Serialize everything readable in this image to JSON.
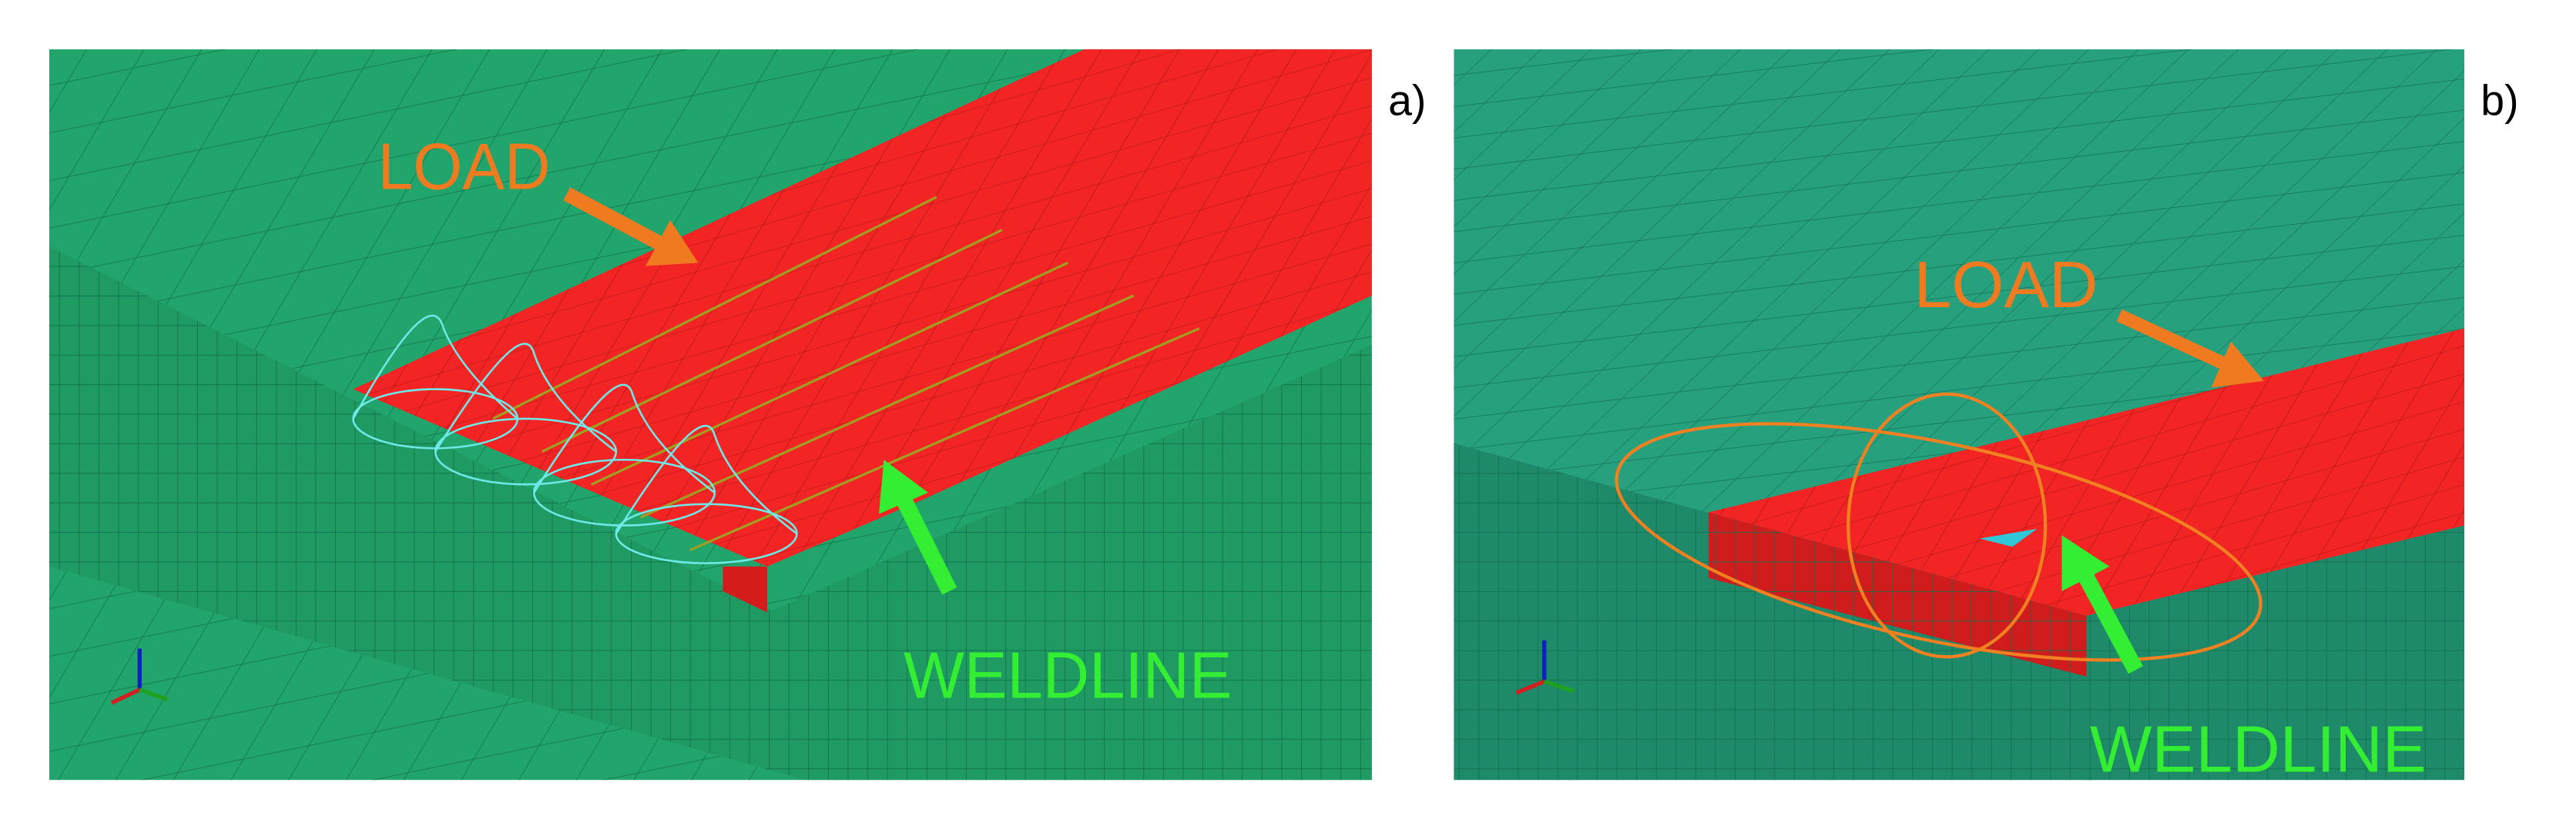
{
  "panels": [
    {
      "label": "a)",
      "annotations": [
        {
          "text": "LOAD"
        },
        {
          "text": "WELDLINE"
        }
      ]
    },
    {
      "label": "b)",
      "annotations": [
        {
          "text": "LOAD"
        },
        {
          "text": "WELDLINE"
        }
      ]
    }
  ]
}
